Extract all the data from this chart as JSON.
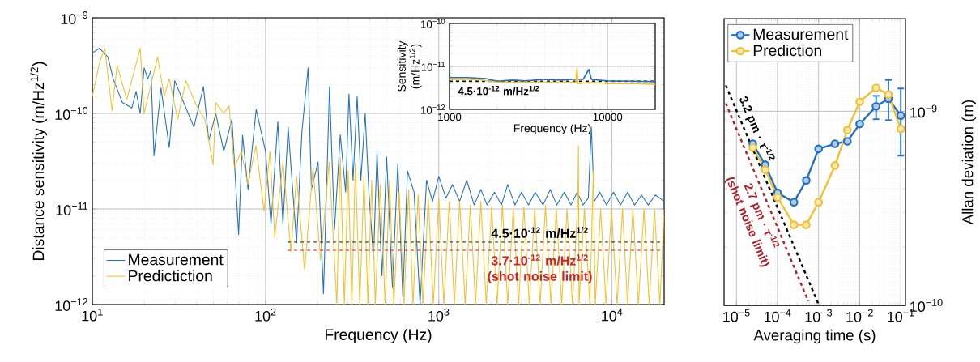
{
  "chart_data": [
    {
      "type": "line",
      "xlabel": "Frequency (Hz)",
      "ylabel": "Distance sensitivity (m/Hz$^{1/2}$)",
      "log": "xy",
      "grid": true,
      "legend": "bottom left",
      "xlim": [
        10,
        20000
      ],
      "ylim": [
        1e-12,
        1e-09
      ],
      "xticks": [
        {
          "value": 10,
          "label": "10$^{1}$"
        },
        {
          "value": 100,
          "label": "10$^{2}$"
        },
        {
          "value": 1000,
          "label": "10$^{3}$"
        },
        {
          "value": 10000,
          "label": "10$^{4}$"
        }
      ],
      "yticks": [
        {
          "value": 1e-12,
          "label": "10$^{−12}$"
        },
        {
          "value": 1e-11,
          "label": "10$^{−11}$"
        },
        {
          "value": 1e-10,
          "label": "10$^{−10}$"
        },
        {
          "value": 1e-09,
          "label": "10$^{−9}$"
        }
      ],
      "series": [
        {
          "name": "Measurement",
          "color": "#2270c4",
          "x": [
            10,
            11,
            12.3,
            13.2,
            14.9,
            16.9,
            17.9,
            18.9,
            19.9,
            20.9,
            21.8,
            22.7,
            24.9,
            27.8,
            29.9,
            34.7,
            38.6,
            43.8,
            47,
            51.6,
            57.4,
            64,
            69.9,
            73.7,
            79.2,
            88.3,
            100,
            107.5,
            117.7,
            126,
            135,
            151,
            162,
            176,
            184,
            201,
            216,
            234,
            250,
            270,
            290,
            303,
            320,
            338,
            355,
            376,
            395,
            420,
            440,
            470,
            500,
            540,
            580,
            620,
            660,
            720,
            780,
            850,
            920,
            1000,
            1100,
            1200,
            1320,
            1450,
            1600,
            1750,
            1900,
            2100,
            2300,
            2500,
            2750,
            3000,
            3300,
            3600,
            4000,
            4400,
            4800,
            5300,
            5800,
            6300,
            6800,
            7300,
            7600,
            7900,
            8500,
            9300,
            10200,
            11200,
            12300,
            13500,
            14800,
            16200,
            17800,
            20000
          ],
          "values": [
            4.3e-10,
            4.8e-10,
            3.9e-10,
            2.3e-10,
            1.3e-10,
            1.14e-10,
            1.7e-10,
            1e-10,
            3e-10,
            2.3e-10,
            2.8e-10,
            3.6e-11,
            1.85e-10,
            4.4e-11,
            2.2e-10,
            1.14e-10,
            7.2e-11,
            1.9e-10,
            5.2e-11,
            1e-10,
            4e-11,
            8.7e-11,
            5.4e-12,
            5.9e-11,
            1.6e-11,
            1.1e-10,
            4e-11,
            6.9e-12,
            8.2e-11,
            6.9e-12,
            7.2e-11,
            4.4e-12,
            6.3e-11,
            3e-10,
            1.6e-11,
            3.1e-11,
            1.3e-12,
            1.9e-10,
            6.1e-12,
            6e-11,
            1.5e-11,
            1.6e-10,
            2e-11,
            1.5e-10,
            2e-11,
            1e-10,
            1.5e-11,
            3e-12,
            4e-11,
            2e-12,
            3.5e-11,
            1.5e-12,
            3e-11,
            1.2e-12,
            2.5e-11,
            1.5e-11,
            1e-12,
            2e-11,
            1.2e-11,
            2.2e-11,
            1.3e-11,
            1.8e-11,
            1.2e-11,
            2e-11,
            1.1e-11,
            1.6e-11,
            1.1e-11,
            1.5e-11,
            1.1e-11,
            1.8e-11,
            1.1e-11,
            1.5e-11,
            1.1e-11,
            1.5e-11,
            1.1e-11,
            1.6e-11,
            1.1e-11,
            1.5e-11,
            1.1e-11,
            1.5e-11,
            1.1e-11,
            1.3e-11,
            7.2e-11,
            1.2e-11,
            1.5e-11,
            1.1e-11,
            1.5e-11,
            1.1e-11,
            1.5e-11,
            1.1e-11,
            1.4e-11,
            1.1e-11,
            1.4e-11,
            1.2e-11
          ]
        },
        {
          "name": "Predictiction",
          "color": "#f2c12e",
          "x": [
            10,
            11,
            11.8,
            13,
            13.9,
            15.8,
            18.9,
            19.9,
            23.8,
            26,
            27.8,
            31.1,
            34.7,
            40,
            44.6,
            49.8,
            51.6,
            57.4,
            61.6,
            66,
            72.5,
            79,
            88,
            98,
            106,
            113,
            126,
            140,
            151,
            168,
            188,
            208,
            233,
            258,
            270,
            285,
            300,
            315,
            330,
            350,
            370,
            390,
            410,
            430,
            460,
            490,
            520,
            550,
            590,
            630,
            670,
            710,
            760,
            810,
            870,
            930,
            1000,
            1070,
            1150,
            1230,
            1320,
            1420,
            1520,
            1630,
            1750,
            1880,
            2020,
            2170,
            2330,
            2500,
            2690,
            2890,
            3100,
            3330,
            3580,
            3850,
            4130,
            4440,
            4770,
            5120,
            5500,
            5910,
            6350,
            6400,
            6450,
            6930,
            7450,
            7800,
            8000,
            8600,
            9240,
            9930,
            10700,
            11500,
            12300,
            13200,
            14200,
            15300,
            16400,
            17600,
            18900,
            20000
          ],
          "values": [
            1.5e-10,
            3.4e-10,
            4.8e-10,
            1.07e-10,
            3.2e-10,
            1.4e-10,
            4.8e-10,
            1e-10,
            3.9e-10,
            1.5e-10,
            2.3e-10,
            8.7e-11,
            2.2e-10,
            1.2e-10,
            8.7e-11,
            2.9e-11,
            1.3e-10,
            1e-10,
            1.2e-10,
            2.7e-11,
            4e-11,
            1.8e-11,
            4.6e-11,
            9.5e-12,
            4e-11,
            5e-12,
            3.1e-11,
            3.6e-12,
            2.2e-11,
            2.3e-12,
            2.7e-11,
            2.9e-12,
            3.1e-11,
            1e-12,
            3.5e-11,
            1e-12,
            2.5e-11,
            1e-12,
            3e-11,
            1e-12,
            2.2e-11,
            1e-12,
            2e-11,
            1e-12,
            1.8e-11,
            1e-12,
            2e-11,
            1e-12,
            1.5e-11,
            1e-12,
            1.6e-11,
            1e-12,
            1.4e-11,
            1e-12,
            1.3e-11,
            1e-12,
            1.3e-11,
            1e-12,
            1.2e-11,
            1e-12,
            1.2e-11,
            1e-12,
            1.1e-11,
            1e-12,
            1.2e-11,
            1e-12,
            1.05e-11,
            1e-12,
            1.1e-11,
            1e-12,
            1e-11,
            1e-12,
            1.05e-11,
            1e-12,
            1e-11,
            1e-12,
            1.1e-11,
            1e-12,
            1e-11,
            1e-12,
            1e-11,
            1e-12,
            1.2e-11,
            4.6e-11,
            1e-12,
            1e-11,
            1e-12,
            2.5e-11,
            1e-12,
            1e-11,
            1e-12,
            1e-11,
            1e-12,
            1e-11,
            1e-12,
            1e-11,
            1e-12,
            1e-11,
            1e-12,
            1e-11,
            1e-12,
            1e-11
          ]
        },
        {
          "name": "4.5·10$^{-12}$ m/Hz$^{1/2}$",
          "color": "#000000",
          "line_style": "dashed",
          "x": [
            134,
            20000
          ],
          "values": [
            4.5e-12,
            4.5e-12
          ]
        },
        {
          "name": "3.7·10$^{-12}$ m/Hz$^{1/2}$ (shot noise limit)",
          "color": "#cc2222",
          "line_style": "dashed",
          "x": [
            134,
            20000
          ],
          "values": [
            3.7e-12,
            3.7e-12
          ]
        }
      ]
    },
    {
      "type": "line",
      "xlabel": "Frequency (Hz)",
      "ylabel": "Sensitivity (m/Hz$^{1/2}$)",
      "log": "xy",
      "grid": true,
      "xlim": [
        1000,
        20000
      ],
      "ylim": [
        1e-12,
        1e-10
      ],
      "xticks": [
        1000,
        10000
      ],
      "yticks": [
        {
          "value": 1e-12,
          "label": "10$^{−12}$"
        },
        {
          "value": 1e-11,
          "label": "10$^{−11}$"
        },
        {
          "value": 1e-10,
          "label": "10$^{−10}$"
        }
      ],
      "ref_lines": [
        {
          "axis": "y",
          "value": 4.5e-12,
          "label": "4.5·10$^{-12}$ m/Hz$^{1/2}$",
          "color": "#000000",
          "line_style": "dashed"
        }
      ],
      "series": [
        {
          "color": "#2270c4",
          "x": [
            1000,
            1300,
            1700,
            2000,
            2500,
            3000,
            4000,
            5000,
            6000,
            7000,
            7600,
            7900,
            10000,
            15000,
            20000
          ],
          "values": [
            5.5e-12,
            5.5e-12,
            5.2e-12,
            4.5e-12,
            4.8e-12,
            4.6e-12,
            5e-12,
            4.8e-12,
            5e-12,
            5e-12,
            8.5e-12,
            5e-12,
            4.6e-12,
            4.5e-12,
            4.4e-12
          ]
        },
        {
          "color": "#f2c12e",
          "x": [
            1000,
            1500,
            2000,
            3000,
            5000,
            6300,
            6400,
            6500,
            8000,
            10000,
            15000,
            20000
          ],
          "values": [
            5e-12,
            5e-12,
            4.3e-12,
            4.3e-12,
            4.3e-12,
            4.3e-12,
            9e-12,
            4e-12,
            4.3e-12,
            4e-12,
            4e-12,
            3.8e-12
          ]
        }
      ]
    },
    {
      "type": "line",
      "xlabel": "Averaging time (s)",
      "ylabel": "Allan deviation (m)",
      "log": "xy",
      "grid": true,
      "legend": "top left",
      "marker": "circle",
      "xlim": [
        5e-06,
        0.13
      ],
      "ylim": [
        1e-10,
        3e-09
      ],
      "xticks": [
        {
          "value": 1e-05,
          "label": "10$^{−5}$"
        },
        {
          "value": 0.0001,
          "label": "10$^{−4}$"
        },
        {
          "value": 0.001,
          "label": "10$^{−3}$"
        },
        {
          "value": 0.01,
          "label": "10$^{−2}$"
        },
        {
          "value": 0.1,
          "label": "10$^{−1}$"
        }
      ],
      "yticks": [
        {
          "value": 1e-10,
          "label": "10$^{−10}$"
        },
        {
          "value": 1e-09,
          "label": "10$^{−9}$"
        }
      ],
      "x": [
        2.5e-05,
        5e-05,
        0.0001,
        0.00025,
        0.0005,
        0.001,
        0.0025,
        0.005,
        0.01,
        0.025,
        0.05,
        0.1
      ],
      "series": [
        {
          "name": "Measurement",
          "color": "#2270c4",
          "values": [
            6.8e-10,
            5.3e-10,
            3.8e-10,
            3.4e-10,
            4.4e-10,
            6.4e-10,
            6.8e-10,
            7e-10,
            8.6e-10,
            1.06e-09,
            1.16e-09,
            9.5e-10
          ],
          "errors": [
            null,
            null,
            null,
            null,
            null,
            null,
            null,
            null,
            null,
            [
              9.1e-10,
              1.2e-09
            ],
            [
              9e-10,
              1.45e-09
            ],
            [
              5.9e-10,
              1.31e-09
            ]
          ]
        },
        {
          "name": "Prediction",
          "color": "#f2c12e",
          "values": [
            6.5e-10,
            5e-10,
            3.6e-10,
            2.6e-10,
            2.6e-10,
            3.4e-10,
            5.25e-10,
            8e-10,
            1.12e-09,
            1.32e-09,
            1.22e-09,
            8.1e-10
          ]
        },
        {
          "name": "3.2 pm · τ$^{-1/2}$",
          "color": "#000000",
          "line_style": "dashed",
          "marker": "none",
          "x": [
            5.5e-06,
            0.001
          ],
          "values": [
            1.36e-09,
            1.01e-10
          ]
        },
        {
          "name": "2.7 pm · τ$^{-1/2}$ (shot noise limit)",
          "color": "#b0202a",
          "line_style": "dashed",
          "marker": "none",
          "x": [
            5.5e-06,
            0.00056
          ],
          "values": [
            1.1e-09,
            1.05e-10
          ]
        }
      ]
    }
  ]
}
